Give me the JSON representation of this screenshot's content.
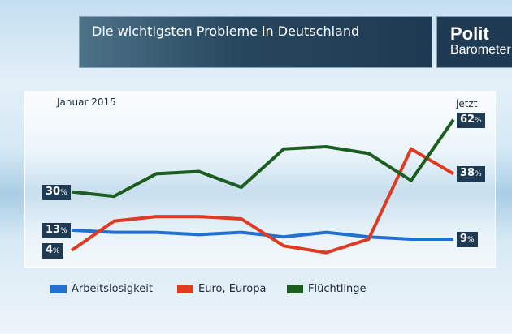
{
  "title": "Die wichtigsten Probleme in Deutschland",
  "logo": {
    "line1": "Polit",
    "line2": "Barometer"
  },
  "chart_data": {
    "type": "line",
    "title": "Die wichtigsten Probleme in Deutschland",
    "unit": "%",
    "start_label": "Januar 2015",
    "end_label": "jetzt",
    "ylim": [
      0,
      70
    ],
    "series": [
      {
        "name": "Arbeitslosigkeit",
        "color": "#2270d0",
        "values": [
          13,
          12,
          12,
          11,
          12,
          10,
          12,
          10,
          9,
          9
        ],
        "start_text": "13",
        "end_text": "9"
      },
      {
        "name": "Euro, Europa",
        "color": "#e03a22",
        "values": [
          4,
          17,
          19,
          19,
          18,
          6,
          3,
          9,
          49,
          38
        ],
        "start_text": "4",
        "end_text": "38"
      },
      {
        "name": "Flüchtlinge",
        "color": "#1b5e20",
        "values": [
          30,
          28,
          38,
          39,
          32,
          49,
          50,
          47,
          35,
          62
        ],
        "start_text": "30",
        "end_text": "62"
      }
    ]
  }
}
